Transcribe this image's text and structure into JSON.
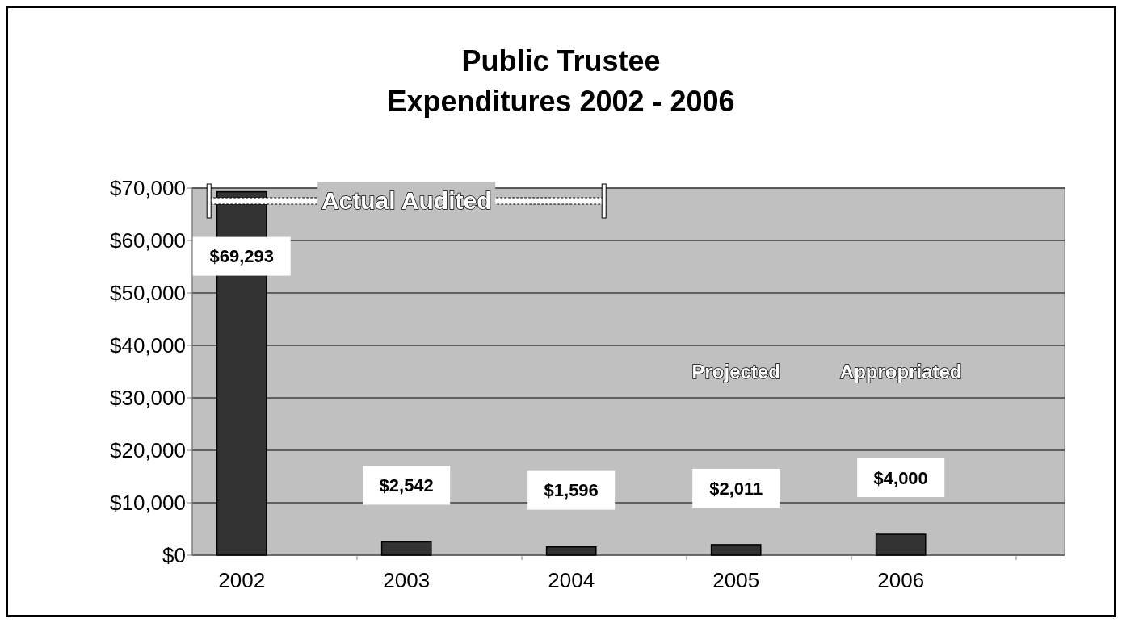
{
  "chart_data": {
    "type": "bar",
    "title": "Public Trustee",
    "subtitle": "Expenditures 2002 - 2006",
    "categories": [
      "2002",
      "2003",
      "2004",
      "2005",
      "2006"
    ],
    "values": [
      69293,
      2542,
      1596,
      2011,
      4000
    ],
    "value_labels": [
      "$69,293",
      "$2,542",
      "$1,596",
      "$2,011",
      "$4,000"
    ],
    "color": "#333333",
    "ylim": [
      0,
      70000
    ],
    "yticks": [
      {
        "value": 0,
        "label": "$0"
      },
      {
        "value": 10000,
        "label": "$10,000"
      },
      {
        "value": 20000,
        "label": "$20,000"
      },
      {
        "value": 30000,
        "label": "$30,000"
      },
      {
        "value": 40000,
        "label": "$40,000"
      },
      {
        "value": 50000,
        "label": "$50,000"
      },
      {
        "value": 60000,
        "label": "$60,000"
      },
      {
        "value": 70000,
        "label": "$70,000"
      }
    ],
    "grid": "y",
    "annotations": [
      "Actual Audited",
      "Projected",
      "Appropriated"
    ]
  }
}
